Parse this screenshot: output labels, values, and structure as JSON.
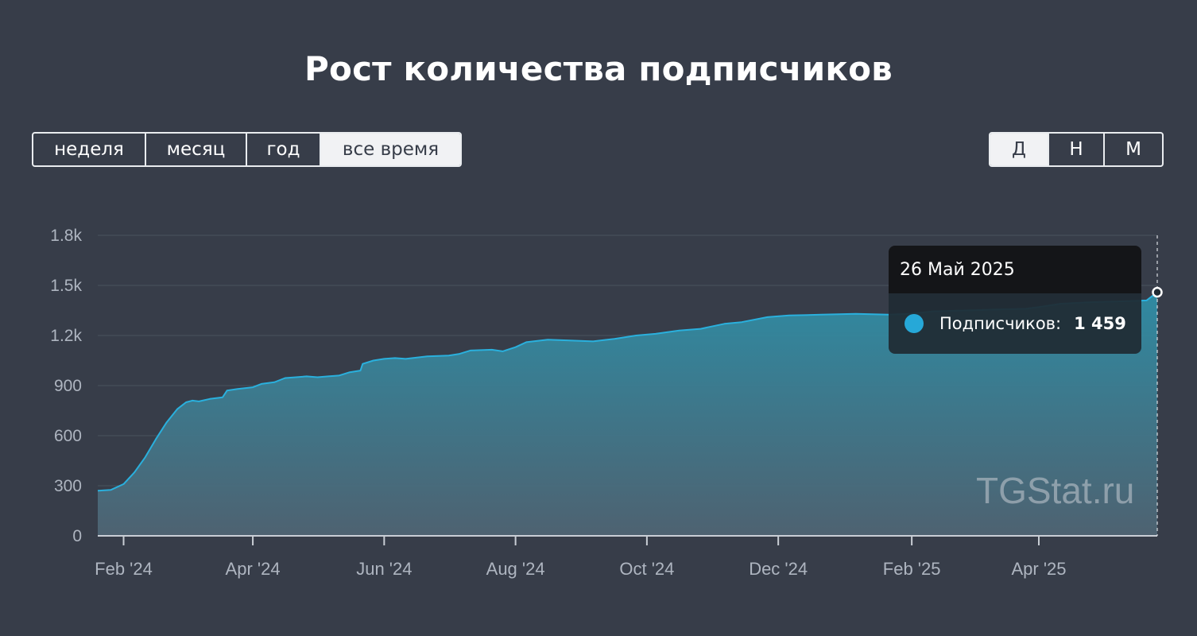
{
  "title": "Рост количества подписчиков",
  "period_buttons": [
    {
      "label": "неделя",
      "active": false
    },
    {
      "label": "месяц",
      "active": false
    },
    {
      "label": "год",
      "active": false
    },
    {
      "label": "все время",
      "active": true
    }
  ],
  "granularity_buttons": [
    {
      "label": "Д",
      "active": true
    },
    {
      "label": "Н",
      "active": false
    },
    {
      "label": "М",
      "active": false
    }
  ],
  "tooltip": {
    "date": "26 Май 2025",
    "series_label": "Подписчиков:",
    "value": "1 459"
  },
  "watermark": "TGStat.ru",
  "colors": {
    "background": "#373d49",
    "line": "#2ab0dd",
    "area_top": "#2f8ea6",
    "area_bottom": "#4a5e6e"
  },
  "chart_data": {
    "type": "area",
    "title": "Рост количества подписчиков",
    "xlabel": "",
    "ylabel": "",
    "x_range": [
      "2024-01-20",
      "2025-05-26"
    ],
    "ylim": [
      0,
      1800
    ],
    "y_ticks": [
      0,
      300,
      600,
      900,
      1200,
      1500,
      1800
    ],
    "y_tick_labels": [
      "0",
      "300",
      "600",
      "900",
      "1.2k",
      "1.5k",
      "1.8k"
    ],
    "x_ticks": [
      "2024-02-01",
      "2024-04-01",
      "2024-06-01",
      "2024-08-01",
      "2024-10-01",
      "2024-12-01",
      "2025-02-01",
      "2025-04-01"
    ],
    "x_tick_labels": [
      "Feb '24",
      "Apr '24",
      "Jun '24",
      "Aug '24",
      "Oct '24",
      "Dec '24",
      "Feb '25",
      "Apr '25"
    ],
    "grid": true,
    "series": [
      {
        "name": "Подписчиков",
        "x": [
          "2024-01-20",
          "2024-01-26",
          "2024-02-01",
          "2024-02-06",
          "2024-02-11",
          "2024-02-16",
          "2024-02-21",
          "2024-02-26",
          "2024-03-01",
          "2024-03-04",
          "2024-03-07",
          "2024-03-12",
          "2024-03-18",
          "2024-03-20",
          "2024-03-25",
          "2024-04-01",
          "2024-04-05",
          "2024-04-11",
          "2024-04-16",
          "2024-04-21",
          "2024-04-26",
          "2024-05-01",
          "2024-05-06",
          "2024-05-11",
          "2024-05-16",
          "2024-05-21",
          "2024-05-22",
          "2024-05-27",
          "2024-06-01",
          "2024-06-06",
          "2024-06-11",
          "2024-06-21",
          "2024-07-01",
          "2024-07-06",
          "2024-07-11",
          "2024-07-21",
          "2024-07-26",
          "2024-08-01",
          "2024-08-06",
          "2024-08-16",
          "2024-08-26",
          "2024-09-06",
          "2024-09-16",
          "2024-09-26",
          "2024-10-05",
          "2024-10-16",
          "2024-10-26",
          "2024-11-06",
          "2024-11-14",
          "2024-11-26",
          "2024-12-06",
          "2024-12-21",
          "2025-01-06",
          "2025-01-21",
          "2025-01-31",
          "2025-02-11",
          "2025-02-26",
          "2025-03-11",
          "2025-03-26",
          "2025-04-01",
          "2025-04-11",
          "2025-04-26",
          "2025-05-11",
          "2025-05-21",
          "2025-05-26"
        ],
        "values": [
          270,
          275,
          310,
          380,
          470,
          580,
          680,
          760,
          800,
          810,
          805,
          820,
          830,
          870,
          880,
          890,
          910,
          920,
          945,
          950,
          955,
          950,
          955,
          960,
          980,
          990,
          1030,
          1050,
          1060,
          1065,
          1060,
          1075,
          1080,
          1090,
          1110,
          1115,
          1105,
          1130,
          1160,
          1175,
          1170,
          1165,
          1180,
          1200,
          1210,
          1230,
          1240,
          1270,
          1280,
          1310,
          1320,
          1325,
          1330,
          1325,
          1330,
          1345,
          1350,
          1355,
          1360,
          1370,
          1390,
          1400,
          1405,
          1410,
          1459
        ]
      }
    ],
    "highlight_point": {
      "x": "2025-05-26",
      "y": 1459
    }
  }
}
